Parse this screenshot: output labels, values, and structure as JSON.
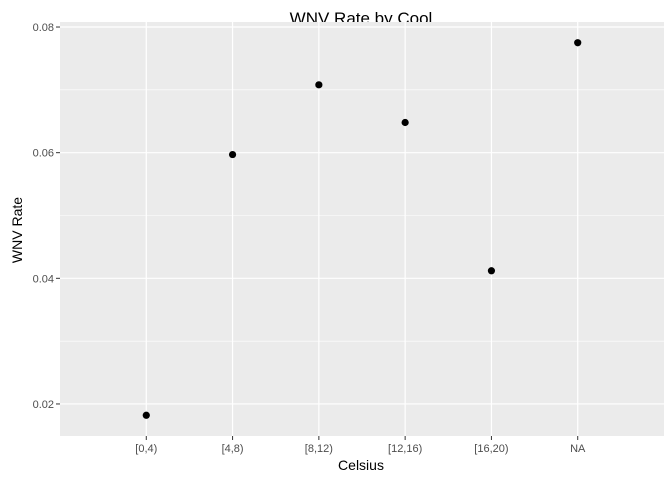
{
  "chart_data": {
    "type": "scatter",
    "title": "WNV Rate by Cool",
    "xlabel": "Celsius",
    "ylabel": "WNV Rate",
    "categories": [
      "[0,4)",
      "[4,8)",
      "[8,12)",
      "[12,16)",
      "[16,20)",
      "NA"
    ],
    "values": [
      0.0182,
      0.0597,
      0.0708,
      0.0648,
      0.0412,
      0.0775
    ],
    "y_ticks": [
      0.02,
      0.04,
      0.06,
      0.08
    ],
    "y_tick_labels": [
      "0.02",
      "0.04",
      "0.06",
      "0.08"
    ],
    "ylim": [
      0.0149,
      0.0808
    ],
    "grid": true,
    "colors": {
      "panel_background": "#ebebeb",
      "grid": "#ffffff",
      "point": "#000000",
      "tick_text": "#4d4d4d"
    }
  }
}
